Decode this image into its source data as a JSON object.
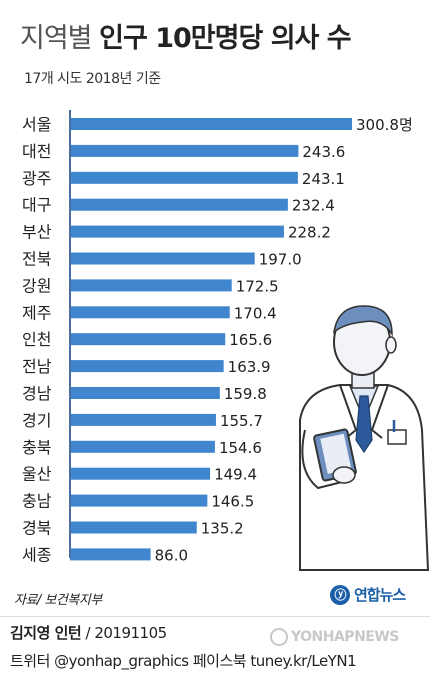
{
  "header": {
    "title_light": "지역별",
    "title_bold": "인구 10만명당 의사 수",
    "subtitle": "17개 시도 2018년 기준"
  },
  "chart_data": {
    "type": "bar",
    "orientation": "horizontal",
    "categories": [
      "서울",
      "대전",
      "광주",
      "대구",
      "부산",
      "전북",
      "강원",
      "제주",
      "인천",
      "전남",
      "경남",
      "경기",
      "충북",
      "울산",
      "충남",
      "경북",
      "세종"
    ],
    "values": [
      300.8,
      243.6,
      243.1,
      232.4,
      228.2,
      197.0,
      172.5,
      170.4,
      165.6,
      163.9,
      159.8,
      155.7,
      154.6,
      149.4,
      146.5,
      135.2,
      86.0
    ],
    "value_labels": [
      "300.8명",
      "243.6",
      "243.1",
      "232.4",
      "228.2",
      "197.0",
      "172.5",
      "170.4",
      "165.6",
      "163.9",
      "159.8",
      "155.7",
      "154.6",
      "149.4",
      "146.5",
      "135.2",
      "86.0"
    ],
    "title": "인구 10만명당 의사 수",
    "xlabel": "",
    "ylabel": "",
    "xlim": [
      0,
      300.8
    ],
    "grid": false,
    "bar_color": "#3f86cf",
    "axis_color": "#4a6fa0"
  },
  "illustration": {
    "icon": "doctor-icon"
  },
  "footer": {
    "source": "자료/ 보건복지부",
    "logo_text": "연합뉴스",
    "logo_mark": "ⓨ",
    "author": "김지영 인턴",
    "date": " / 20191105",
    "social": "트위터 @yonhap_graphics  페이스북 tuney.kr/LeYN1",
    "watermark": "YONHAPNEWS"
  }
}
